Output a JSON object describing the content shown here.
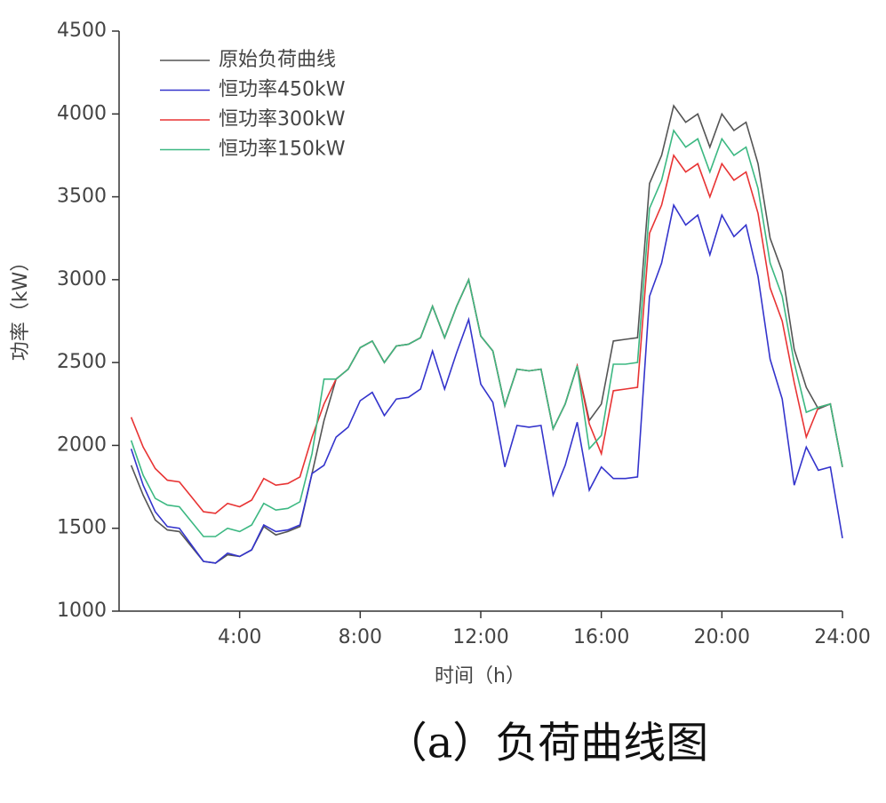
{
  "chart_data": {
    "type": "line",
    "xlabel": "时间（h）",
    "ylabel": "功率（kW）",
    "caption": "（a）负荷曲线图",
    "x": [
      0.4,
      0.8,
      1.2,
      1.6,
      2.0,
      2.4,
      2.8,
      3.2,
      3.6,
      4.0,
      4.4,
      4.8,
      5.2,
      5.6,
      6.0,
      6.4,
      6.8,
      7.2,
      7.6,
      8.0,
      8.4,
      8.8,
      9.2,
      9.6,
      10.0,
      10.4,
      10.8,
      11.2,
      11.6,
      12.0,
      12.4,
      12.8,
      13.2,
      13.6,
      14.0,
      14.4,
      14.8,
      15.2,
      15.6,
      16.0,
      16.4,
      16.8,
      17.2,
      17.6,
      18.0,
      18.4,
      18.8,
      19.2,
      19.6,
      20.0,
      20.4,
      20.8,
      21.2,
      21.6,
      22.0,
      22.4,
      22.8,
      23.2,
      23.6,
      24.0
    ],
    "series": [
      {
        "name": "原始负荷曲线",
        "color": "#555555",
        "values": [
          1880,
          1700,
          1550,
          1490,
          1480,
          1390,
          1300,
          1290,
          1340,
          1330,
          1370,
          1510,
          1460,
          1480,
          1510,
          1830,
          2150,
          2400,
          2460,
          2590,
          2630,
          2500,
          2600,
          2610,
          2650,
          2840,
          2650,
          2840,
          3000,
          2660,
          2570,
          2240,
          2460,
          2450,
          2460,
          2100,
          2250,
          2480,
          2150,
          2250,
          2630,
          2640,
          2650,
          3580,
          3750,
          4050,
          3950,
          4000,
          3800,
          4000,
          3900,
          3950,
          3700,
          3250,
          3050,
          2580,
          2350,
          2220,
          2250,
          1870
        ]
      },
      {
        "name": "恒功率450kW",
        "color": "#3434cc",
        "values": [
          1980,
          1760,
          1600,
          1510,
          1500,
          1400,
          1300,
          1290,
          1350,
          1330,
          1370,
          1520,
          1480,
          1490,
          1520,
          1830,
          1880,
          2050,
          2110,
          2270,
          2320,
          2180,
          2280,
          2290,
          2340,
          2570,
          2340,
          2560,
          2760,
          2370,
          2260,
          1870,
          2120,
          2110,
          2120,
          1700,
          1880,
          2140,
          1730,
          1870,
          1800,
          1800,
          1810,
          2900,
          3100,
          3450,
          3330,
          3390,
          3150,
          3390,
          3260,
          3330,
          3020,
          2520,
          2280,
          1760,
          1990,
          1850,
          1870,
          1440
        ]
      },
      {
        "name": "恒功率300kW",
        "color": "#e83434",
        "values": [
          2170,
          1990,
          1860,
          1790,
          1780,
          1690,
          1600,
          1590,
          1650,
          1630,
          1670,
          1800,
          1760,
          1770,
          1810,
          2050,
          2250,
          2400,
          2460,
          2590,
          2630,
          2500,
          2600,
          2610,
          2650,
          2840,
          2650,
          2840,
          3000,
          2660,
          2570,
          2240,
          2460,
          2450,
          2460,
          2100,
          2250,
          2480,
          2130,
          1950,
          2330,
          2340,
          2350,
          3280,
          3450,
          3750,
          3650,
          3700,
          3500,
          3700,
          3600,
          3650,
          3400,
          2950,
          2750,
          2380,
          2050,
          2230,
          2250,
          1870
        ]
      },
      {
        "name": "恒功率150kW",
        "color": "#3cb882",
        "values": [
          2030,
          1820,
          1680,
          1640,
          1630,
          1540,
          1450,
          1450,
          1500,
          1480,
          1520,
          1650,
          1610,
          1620,
          1660,
          1950,
          2400,
          2400,
          2460,
          2590,
          2630,
          2500,
          2600,
          2610,
          2650,
          2840,
          2650,
          2840,
          3000,
          2660,
          2570,
          2240,
          2460,
          2450,
          2460,
          2100,
          2250,
          2480,
          1980,
          2060,
          2490,
          2490,
          2500,
          3430,
          3600,
          3900,
          3800,
          3850,
          3650,
          3850,
          3750,
          3800,
          3550,
          3100,
          2900,
          2500,
          2200,
          2230,
          2250,
          1870
        ]
      }
    ],
    "xlim": [
      0,
      24
    ],
    "xticks": [
      {
        "value": 4,
        "label": "4:00"
      },
      {
        "value": 8,
        "label": "8:00"
      },
      {
        "value": 12,
        "label": "12:00"
      },
      {
        "value": 16,
        "label": "16:00"
      },
      {
        "value": 20,
        "label": "20:00"
      },
      {
        "value": 24,
        "label": "24:00"
      }
    ],
    "ylim": [
      1000,
      4500
    ],
    "yticks": [
      1000,
      1500,
      2000,
      2500,
      3000,
      3500,
      4000,
      4500
    ],
    "grid": false,
    "legend": "upper left"
  }
}
